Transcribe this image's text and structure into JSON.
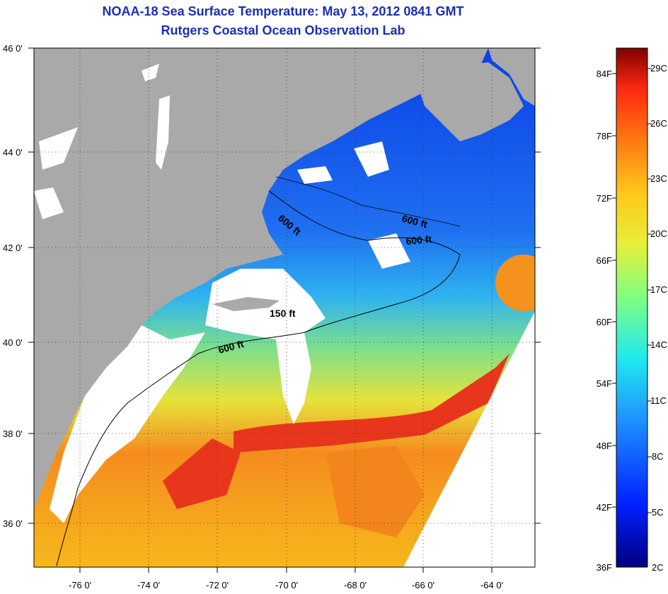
{
  "header": {
    "title": "NOAA-18 Sea Surface Temperature:  May 13, 2012 0841 GMT",
    "subtitle": "Rutgers Coastal Ocean Observation Lab"
  },
  "map": {
    "lat_labels": [
      "46 0'",
      "44 0'",
      "42 0'",
      "40 0'",
      "38 0'",
      "36 0'"
    ],
    "lon_labels": [
      "-76 0'",
      "-74 0'",
      "-72 0'",
      "-70 0'",
      "-68 0'",
      "-66 0'",
      "-64 0'"
    ],
    "contour_labels": [
      "600 ft",
      "600 ft",
      "600 ft",
      "150 ft",
      "600 ft"
    ],
    "colors": {
      "land": "#a9a9a9",
      "cloud": "#ffffff",
      "cold": "#1f5fe0",
      "warm": "#e8361c"
    }
  },
  "colorbar": {
    "fahrenheit": [
      "84F",
      "78F",
      "72F",
      "66F",
      "60F",
      "54F",
      "48F",
      "42F",
      "36F"
    ],
    "celsius": [
      "29C",
      "26C",
      "23C",
      "20C",
      "17C",
      "14C",
      "11C",
      "8C",
      "5C",
      "2C"
    ]
  }
}
